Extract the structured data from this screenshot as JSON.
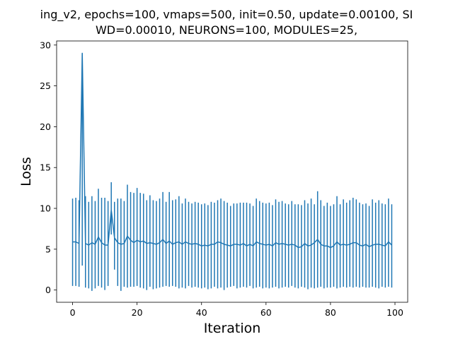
{
  "chart_data": {
    "type": "line",
    "title_line1": "ing_v2, epochs=100, vmaps=500, init=0.50, update=0.00100, SI",
    "title_line2": "WD=0.00010, NEURONS=100, MODULES=25,",
    "xlabel": "Iteration",
    "ylabel": "Loss",
    "xlim": [
      -4.95,
      103.95
    ],
    "ylim": [
      -1.5,
      30.5
    ],
    "x_ticks": [
      0,
      20,
      40,
      60,
      80,
      100
    ],
    "y_ticks": [
      0,
      5,
      10,
      15,
      20,
      25,
      30
    ],
    "series_color": "#1f77b4",
    "grid": false,
    "series": [
      {
        "x": [
          0,
          1,
          2,
          3,
          4,
          5,
          6,
          7,
          8,
          9,
          10,
          11,
          12,
          13,
          14,
          15,
          16,
          17,
          18,
          19,
          20,
          21,
          22,
          23,
          24,
          25,
          26,
          27,
          28,
          29,
          30,
          31,
          32,
          33,
          34,
          35,
          36,
          37,
          38,
          39,
          40,
          41,
          42,
          43,
          44,
          45,
          46,
          47,
          48,
          49,
          50,
          51,
          52,
          53,
          54,
          55,
          56,
          57,
          58,
          59,
          60,
          61,
          62,
          63,
          64,
          65,
          66,
          67,
          68,
          69,
          70,
          71,
          72,
          73,
          74,
          75,
          76,
          77,
          78,
          79,
          80,
          81,
          82,
          83,
          84,
          85,
          86,
          87,
          88,
          89,
          90,
          91,
          92,
          93,
          94,
          95,
          96,
          97,
          98,
          99
        ],
        "y": [
          5.9,
          5.9,
          5.7,
          29.0,
          5.7,
          5.5,
          5.8,
          5.6,
          6.5,
          5.8,
          5.5,
          5.5,
          9.8,
          6.4,
          5.8,
          5.6,
          5.7,
          6.6,
          6.1,
          5.8,
          6.1,
          5.9,
          6.0,
          5.7,
          5.8,
          5.7,
          5.6,
          5.8,
          6.2,
          5.7,
          6.0,
          5.6,
          5.8,
          5.9,
          5.6,
          5.9,
          5.7,
          5.6,
          5.7,
          5.6,
          5.4,
          5.5,
          5.4,
          5.6,
          5.6,
          5.9,
          5.8,
          5.6,
          5.5,
          5.4,
          5.6,
          5.6,
          5.5,
          5.7,
          5.4,
          5.6,
          5.4,
          5.9,
          5.7,
          5.6,
          5.5,
          5.6,
          5.4,
          5.8,
          5.6,
          5.7,
          5.6,
          5.5,
          5.6,
          5.5,
          5.2,
          5.3,
          5.7,
          5.4,
          5.5,
          5.8,
          6.2,
          5.6,
          5.4,
          5.4,
          5.2,
          5.4,
          5.9,
          5.5,
          5.6,
          5.5,
          5.6,
          5.8,
          5.8,
          5.5,
          5.4,
          5.6,
          5.3,
          5.5,
          5.6,
          5.6,
          5.5,
          5.4,
          5.9,
          5.5
        ],
        "lower": [
          0.5,
          0.5,
          0.4,
          3.0,
          0.3,
          0.2,
          -0.1,
          0.2,
          0.5,
          0.3,
          0.0,
          0.5,
          6.8,
          2.5,
          0.5,
          -0.1,
          0.4,
          0.3,
          0.4,
          0.4,
          0.5,
          0.3,
          0.2,
          0.0,
          0.4,
          0.1,
          0.2,
          0.3,
          0.4,
          0.5,
          0.4,
          0.5,
          0.4,
          0.2,
          0.3,
          0.2,
          0.5,
          0.3,
          0.4,
          0.3,
          0.2,
          0.3,
          0.1,
          0.2,
          0.4,
          0.2,
          0.3,
          0.0,
          0.3,
          0.4,
          0.5,
          0.2,
          0.3,
          0.4,
          0.3,
          0.5,
          0.2,
          0.3,
          0.4,
          0.2,
          0.3,
          0.2,
          0.3,
          0.4,
          0.2,
          0.3,
          0.4,
          0.3,
          0.5,
          0.3,
          0.2,
          0.4,
          0.3,
          0.1,
          0.3,
          0.2,
          0.3,
          0.4,
          0.2,
          0.3,
          0.3,
          0.4,
          0.2,
          0.3,
          0.4,
          0.3,
          0.4,
          0.3,
          0.4,
          0.3,
          0.4,
          0.3,
          0.3,
          0.4,
          0.3,
          0.2,
          0.4,
          0.3,
          0.4,
          0.3
        ],
        "upper": [
          11.2,
          11.3,
          11.0,
          29.0,
          11.5,
          10.8,
          11.5,
          10.9,
          12.4,
          11.3,
          11.3,
          10.9,
          13.2,
          10.8,
          11.2,
          11.2,
          10.9,
          12.9,
          12.0,
          11.9,
          12.5,
          11.9,
          11.8,
          11.0,
          11.6,
          11.0,
          10.9,
          11.2,
          12.0,
          10.8,
          12.0,
          11.0,
          11.1,
          11.5,
          10.6,
          11.2,
          10.8,
          10.6,
          10.8,
          10.7,
          10.5,
          10.6,
          10.4,
          10.8,
          10.7,
          11.0,
          11.2,
          10.9,
          10.7,
          10.3,
          10.6,
          10.6,
          10.7,
          10.7,
          10.7,
          10.6,
          10.3,
          11.2,
          10.9,
          10.7,
          10.6,
          10.7,
          10.4,
          11.1,
          10.8,
          10.9,
          10.6,
          10.5,
          10.9,
          10.5,
          10.5,
          10.4,
          11.0,
          10.6,
          11.2,
          10.5,
          12.1,
          11.0,
          10.3,
          10.7,
          10.3,
          10.5,
          11.5,
          10.5,
          11.1,
          10.7,
          11.0,
          11.3,
          11.1,
          10.7,
          10.5,
          10.6,
          10.3,
          11.1,
          10.7,
          11.0,
          10.6,
          10.5,
          11.2,
          10.5
        ]
      }
    ]
  }
}
